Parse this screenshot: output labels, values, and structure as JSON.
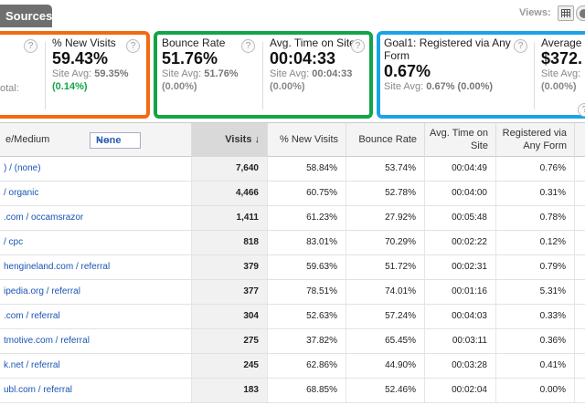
{
  "top": {
    "tab_label": "Sources",
    "views_label": "Views:",
    "view_icons": [
      "table-view-icon",
      "pie-view-icon"
    ]
  },
  "scorecards": [
    {
      "label": "% New Visits",
      "value": "59.43%",
      "avg_label": "Site Avg:",
      "avg_value": "59.35%",
      "delta": "(0.14%)",
      "delta_color": "#13a448"
    },
    {
      "label": "Bounce Rate",
      "value": "51.76%",
      "avg_label": "Site Avg:",
      "avg_value": "51.76%",
      "delta": "(0.00%)",
      "delta_color": "#888888"
    },
    {
      "label": "Avg. Time on Site",
      "value": "00:04:33",
      "avg_label": "Site Avg:",
      "avg_value": "00:04:33",
      "delta": "(0.00%)",
      "delta_color": "#888888"
    },
    {
      "label": "Goal1: Registered via Any Form",
      "value": "0.67%",
      "avg_label": "Site Avg:",
      "avg_value": "0.67%",
      "delta": "(0.00%)",
      "delta_color": "#888888"
    },
    {
      "label": "Average",
      "value": "$372.",
      "avg_label": "Site Avg:",
      "avg_value": "",
      "delta": "(0.00%)",
      "delta_color": "#888888"
    }
  ],
  "partial_card": {
    "otal": "otal:"
  },
  "colors": {
    "orange": "#f26a12",
    "green": "#13a448",
    "blue": "#1aa3e8"
  },
  "table": {
    "headers": {
      "source": "e/Medium",
      "secondary": "None",
      "visits": "Visits",
      "new_visits": "% New Visits",
      "bounce": "Bounce Rate",
      "time1": "Avg. Time on",
      "time2": "Site",
      "goal1": "Registered via",
      "goal2": "Any Form"
    },
    "rows": [
      {
        "source": ") / (none)",
        "visits": "7,640",
        "new": "58.84%",
        "bounce": "53.74%",
        "time": "00:04:49",
        "goal": "0.76%"
      },
      {
        "source": " / organic",
        "visits": "4,466",
        "new": "60.75%",
        "bounce": "52.78%",
        "time": "00:04:00",
        "goal": "0.31%"
      },
      {
        "source": ".com / occamsrazor",
        "visits": "1,411",
        "new": "61.23%",
        "bounce": "27.92%",
        "time": "00:05:48",
        "goal": "0.78%"
      },
      {
        "source": " / cpc",
        "visits": "818",
        "new": "83.01%",
        "bounce": "70.29%",
        "time": "00:02:22",
        "goal": "0.12%"
      },
      {
        "source": "hengineland.com / referral",
        "visits": "379",
        "new": "59.63%",
        "bounce": "51.72%",
        "time": "00:02:31",
        "goal": "0.79%"
      },
      {
        "source": "ipedia.org / referral",
        "visits": "377",
        "new": "78.51%",
        "bounce": "74.01%",
        "time": "00:01:16",
        "goal": "5.31%"
      },
      {
        "source": ".com / referral",
        "visits": "304",
        "new": "52.63%",
        "bounce": "57.24%",
        "time": "00:04:03",
        "goal": "0.33%"
      },
      {
        "source": "tmotive.com / referral",
        "visits": "275",
        "new": "37.82%",
        "bounce": "65.45%",
        "time": "00:03:11",
        "goal": "0.36%"
      },
      {
        "source": "k.net / referral",
        "visits": "245",
        "new": "62.86%",
        "bounce": "44.90%",
        "time": "00:03:28",
        "goal": "0.41%"
      },
      {
        "source": "ubl.com / referral",
        "visits": "183",
        "new": "68.85%",
        "bounce": "52.46%",
        "time": "00:02:04",
        "goal": "0.00%"
      }
    ]
  }
}
